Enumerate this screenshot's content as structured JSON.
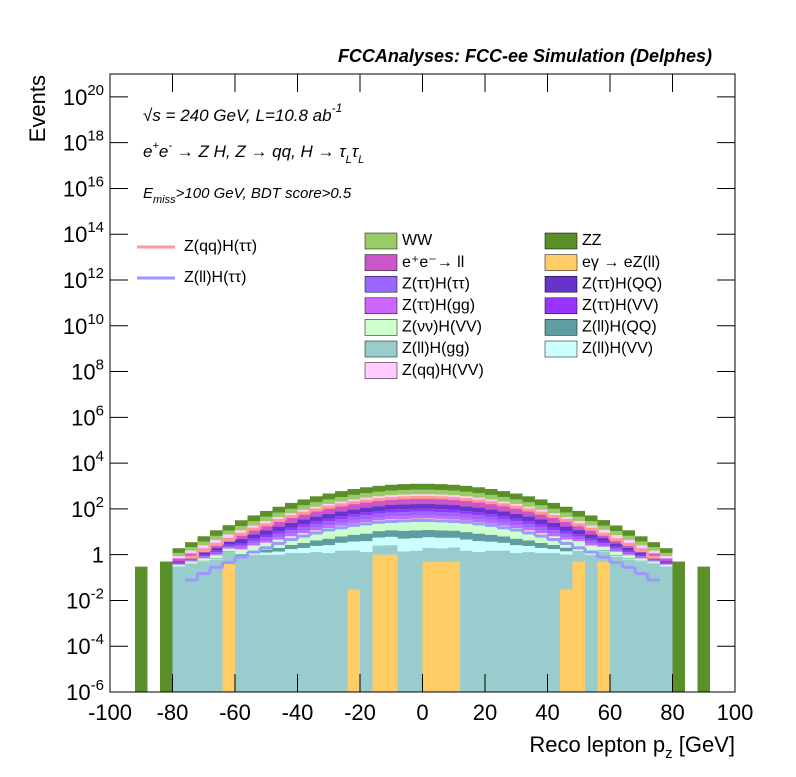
{
  "chart_data": {
    "type": "histogram",
    "title": "FCCAnalyses: FCC-ee Simulation (Delphes)",
    "annotations": [
      [
        "√s = 240 GeV, L=10.8 ab",
        "-1"
      ],
      [
        "e",
        "+",
        "e",
        "-",
        " → Z H, Z  → qq, H  → τ",
        "L",
        "τ",
        "L"
      ],
      [
        "E",
        "miss",
        ">100 GeV, BDT score>0.5"
      ]
    ],
    "y_label": "Events",
    "x_label": [
      "Reco lepton p",
      "z",
      " [GeV]"
    ],
    "log_y": true,
    "xlim": [
      -100,
      100
    ],
    "xticks": [
      -100,
      -80,
      -60,
      -40,
      -20,
      0,
      20,
      40,
      60,
      80,
      100
    ],
    "ylim": [
      1e-06,
      1e+21
    ],
    "yticks": [
      {
        "value": 1e-06,
        "label": "10",
        "exponent": "-6"
      },
      {
        "value": 0.0001,
        "label": "10",
        "exponent": "-4"
      },
      {
        "value": 0.01,
        "label": "10",
        "exponent": "-2"
      },
      1,
      {
        "value": 100.0,
        "label": "10",
        "exponent": "2"
      },
      {
        "value": 10000.0,
        "label": "10",
        "exponent": "4"
      },
      {
        "value": 1000000.0,
        "label": "10",
        "exponent": "6"
      },
      {
        "value": 100000000.0,
        "label": "10",
        "exponent": "8"
      },
      {
        "value": 10000000000.0,
        "label": "10",
        "exponent": "10"
      },
      {
        "value": 1000000000000.0,
        "label": "10",
        "exponent": "12"
      },
      {
        "value": 100000000000000.0,
        "label": "10",
        "exponent": "14"
      },
      {
        "value": 1e+16,
        "label": "10",
        "exponent": "16"
      },
      {
        "value": 1e+18,
        "label": "10",
        "exponent": "18"
      },
      {
        "value": 1e+20,
        "label": "10",
        "exponent": "20"
      }
    ],
    "bins": [
      -100,
      -96,
      -92,
      -88,
      -84,
      -80,
      -76,
      -72,
      -68,
      -64,
      -60,
      -56,
      -52,
      -48,
      -44,
      -40,
      -36,
      -32,
      -28,
      -24,
      -20,
      -16,
      -12,
      -8,
      -4,
      0,
      4,
      8,
      12,
      16,
      20,
      24,
      28,
      32,
      36,
      40,
      44,
      48,
      52,
      56,
      60,
      64,
      68,
      72,
      76,
      80,
      84,
      88,
      92,
      96,
      100
    ],
    "series": [
      {
        "name": "WW",
        "color": "#99cc66",
        "values": [
          0,
          0,
          0,
          0,
          0,
          0.32,
          0.62,
          1.2,
          2.2,
          3.6,
          6.2,
          10,
          16,
          25,
          36,
          52,
          71,
          94,
          120,
          148,
          176,
          204,
          226,
          242,
          250,
          250,
          242,
          226,
          204,
          176,
          148,
          120,
          94,
          71,
          52,
          36,
          25,
          16,
          10,
          6.2,
          3.6,
          2.2,
          1.2,
          0.62,
          0.32,
          0,
          0,
          0,
          0,
          0
        ]
      },
      {
        "name": "ZZ",
        "color": "#5a8f29",
        "values": [
          0,
          0,
          0.3,
          0,
          0.5,
          0.72,
          1.4,
          2.6,
          5,
          8.1,
          14,
          23,
          36,
          55,
          82,
          116,
          159,
          212,
          270,
          333,
          396,
          459,
          509,
          545,
          563,
          563,
          545,
          509,
          459,
          396,
          333,
          270,
          212,
          159,
          116,
          82,
          55,
          36,
          23,
          14,
          8.1,
          5,
          2.6,
          1.4,
          0.72,
          0.5,
          0,
          0.3,
          0,
          0
        ]
      },
      {
        "name": "e⁺e⁻→ ll",
        "color": "#cc55cc",
        "values": [
          0,
          0,
          0,
          0,
          0,
          0.16,
          0.31,
          0.58,
          1.1,
          1.8,
          3.1,
          5.1,
          8.1,
          12,
          18,
          26,
          35,
          47,
          60,
          74,
          88,
          102,
          113,
          121,
          125,
          125,
          121,
          113,
          102,
          88,
          74,
          60,
          47,
          35,
          26,
          18,
          12,
          8.1,
          5.1,
          3.1,
          1.8,
          1.1,
          0.58,
          0.31,
          0.16,
          0,
          0,
          0,
          0,
          0
        ]
      },
      {
        "name": "eγ  → eZ(ll)",
        "color": "#ffcc66",
        "values": [
          0,
          0,
          0,
          0,
          0,
          0,
          0,
          0,
          0,
          0.5,
          0,
          0,
          0,
          0,
          0,
          0,
          0,
          0,
          0,
          0.03,
          0,
          1,
          1,
          0,
          0,
          0.5,
          0.5,
          0.5,
          0,
          0,
          0,
          0,
          0,
          0,
          0,
          0,
          0.03,
          0.5,
          0,
          0.5,
          0,
          0,
          0,
          0,
          0,
          0,
          0,
          0,
          0,
          0
        ]
      },
      {
        "name": "Z(ττ)H(ττ)",
        "color": "#9966ff",
        "values": [
          0,
          0,
          0,
          0,
          0,
          0.032,
          0.062,
          0.12,
          0.22,
          0.36,
          0.62,
          1,
          1.6,
          2.5,
          3.6,
          5.2,
          7.1,
          9.4,
          12,
          15,
          18,
          20,
          23,
          24,
          25,
          25,
          24,
          23,
          20,
          18,
          15,
          12,
          9.4,
          7.1,
          5.2,
          3.6,
          2.5,
          1.6,
          1,
          0.62,
          0.36,
          0.22,
          0.12,
          0.062,
          0.032,
          0,
          0,
          0,
          0,
          0
        ]
      },
      {
        "name": "Z(ττ)H(QQ)",
        "color": "#6633cc",
        "values": [
          0,
          0,
          0,
          0,
          0,
          0.08,
          0.16,
          0.29,
          0.55,
          0.9,
          1.6,
          2.6,
          4.1,
          6.2,
          9.1,
          13,
          18,
          24,
          30,
          37,
          44,
          51,
          57,
          61,
          63,
          63,
          61,
          57,
          51,
          44,
          37,
          30,
          24,
          18,
          13,
          9.1,
          6.2,
          4.1,
          2.6,
          1.6,
          0.9,
          0.55,
          0.29,
          0.16,
          0.08,
          0,
          0,
          0,
          0,
          0
        ]
      },
      {
        "name": "Z(ττ)H(gg)",
        "color": "#cc66ff",
        "values": [
          0,
          0,
          0,
          0,
          0,
          0.016,
          0.031,
          0.058,
          0.11,
          0.18,
          0.31,
          0.51,
          0.81,
          1.2,
          1.8,
          2.6,
          3.5,
          4.7,
          6,
          7.4,
          8.8,
          10,
          11,
          12,
          13,
          13,
          12,
          11,
          10,
          8.8,
          7.4,
          6,
          4.7,
          3.5,
          2.6,
          1.8,
          1.2,
          0.81,
          0.51,
          0.31,
          0.18,
          0.11,
          0.058,
          0.031,
          0.016,
          0,
          0,
          0,
          0,
          0
        ]
      },
      {
        "name": "Z(ττ)H(VV)",
        "color": "#9933ff",
        "values": [
          0,
          0,
          0,
          0,
          0,
          0.03,
          0.06,
          0.11,
          0.2,
          0.34,
          0.6,
          0.95,
          1.5,
          2.4,
          3.5,
          5,
          7,
          9,
          11,
          14,
          17,
          19,
          22,
          23,
          24,
          24,
          23,
          22,
          19,
          17,
          14,
          11,
          9,
          7,
          5,
          3.5,
          2.4,
          1.5,
          0.95,
          0.6,
          0.34,
          0.2,
          0.11,
          0.06,
          0.03,
          0,
          0,
          0,
          0,
          0
        ]
      },
      {
        "name": "Z(νν)H(VV)",
        "color": "#ccffcc",
        "values": [
          0,
          0,
          0,
          0,
          0,
          0.05,
          0.08,
          0.14,
          0.25,
          0.4,
          0.65,
          1.1,
          1.7,
          2.6,
          3.7,
          5.4,
          7.3,
          9.6,
          12,
          15,
          18,
          21,
          23,
          25,
          26,
          26,
          25,
          23,
          21,
          18,
          15,
          12,
          9.6,
          7.3,
          5.4,
          3.7,
          2.6,
          1.7,
          1.1,
          0.65,
          0.4,
          0.25,
          0.14,
          0.08,
          0.05,
          0,
          0,
          0,
          0,
          0
        ]
      },
      {
        "name": "Z(ll)H(QQ)",
        "color": "#5f9ea0",
        "values": [
          0,
          0,
          0,
          0,
          0,
          0.008,
          0.016,
          0.029,
          0.055,
          0.09,
          0.16,
          0.26,
          0.41,
          0.62,
          0.91,
          1.3,
          1.8,
          2.4,
          3,
          3.7,
          4.4,
          5.1,
          5.7,
          6.1,
          6.3,
          6.3,
          6.1,
          5.7,
          5.1,
          4.4,
          3.7,
          3,
          2.4,
          1.8,
          1.3,
          0.91,
          0.62,
          0.41,
          0.26,
          0.16,
          0.09,
          0.055,
          0.029,
          0.016,
          0.008,
          0,
          0,
          0,
          0,
          0
        ]
      },
      {
        "name": "Z(ll)H(gg)",
        "color": "#99cccc",
        "values": [
          0,
          0,
          0,
          0,
          0,
          0.3,
          0.4,
          0.5,
          0.6,
          0.8,
          0.8,
          1,
          1,
          1,
          1.2,
          1.2,
          1.3,
          1.2,
          1.5,
          1.5,
          1.3,
          1.5,
          1.6,
          1.4,
          1.5,
          1.5,
          1.4,
          1.6,
          1.5,
          1.3,
          1.5,
          1.5,
          1.2,
          1.3,
          1.2,
          1.2,
          1,
          1,
          1,
          0.8,
          0.8,
          0.6,
          0.5,
          0.4,
          0.3,
          0,
          0,
          0,
          0,
          0
        ]
      },
      {
        "name": "Z(ll)H(VV)",
        "color": "#ccffff",
        "values": [
          0,
          0,
          0,
          0,
          0,
          0.005,
          0.009,
          0.017,
          0.033,
          0.054,
          0.093,
          0.15,
          0.24,
          0.37,
          0.55,
          0.77,
          1.1,
          1.4,
          1.8,
          2.2,
          2.6,
          3.1,
          3.4,
          3.6,
          3.8,
          3.8,
          3.6,
          3.4,
          3.1,
          2.6,
          2.2,
          1.8,
          1.4,
          1.1,
          0.77,
          0.55,
          0.37,
          0.24,
          0.15,
          0.093,
          0.054,
          0.033,
          0.017,
          0.009,
          0.005,
          0,
          0,
          0,
          0,
          0
        ]
      },
      {
        "name": "Z(qq)H(VV)",
        "color": "#ffccff",
        "values": [
          0,
          0,
          0,
          0,
          0,
          0.19,
          0.37,
          0.7,
          1.3,
          2.2,
          3.7,
          6.1,
          9.7,
          15,
          22,
          31,
          42,
          56,
          72,
          89,
          106,
          122,
          136,
          145,
          150,
          150,
          145,
          136,
          122,
          106,
          89,
          72,
          56,
          42,
          31,
          22,
          15,
          9.7,
          6.1,
          3.7,
          2.2,
          1.3,
          0.7,
          0.37,
          0.19,
          0,
          0,
          0,
          0,
          0
        ]
      }
    ],
    "lines": [
      {
        "name": "Z(qq)H(ττ)",
        "color": "#ff9999",
        "values": [
          null,
          null,
          null,
          null,
          null,
          null,
          0.78,
          1.5,
          2.8,
          4.5,
          7.8,
          13,
          20,
          31,
          46,
          65,
          89,
          118,
          150,
          185,
          220,
          255,
          283,
          303,
          313,
          313,
          303,
          283,
          255,
          220,
          185,
          150,
          118,
          89,
          65,
          46,
          31,
          20,
          13,
          7.8,
          4.5,
          2.8,
          1.5,
          0.78,
          null,
          null,
          null,
          null,
          null,
          null
        ]
      },
      {
        "name": "Z(ll)H(ττ)",
        "color": "#9999ff",
        "values": [
          null,
          null,
          null,
          null,
          null,
          null,
          0.078,
          0.15,
          0.28,
          0.45,
          0.78,
          1.3,
          2,
          3.1,
          4.6,
          6.5,
          8.9,
          12,
          15,
          19,
          22,
          26,
          28,
          30,
          31,
          31,
          30,
          28,
          26,
          22,
          19,
          15,
          12,
          8.9,
          6.5,
          4.6,
          3.1,
          2,
          1.3,
          0.78,
          0.45,
          0.28,
          0.15,
          0.078,
          null,
          null,
          null,
          null,
          null,
          null
        ]
      }
    ]
  }
}
